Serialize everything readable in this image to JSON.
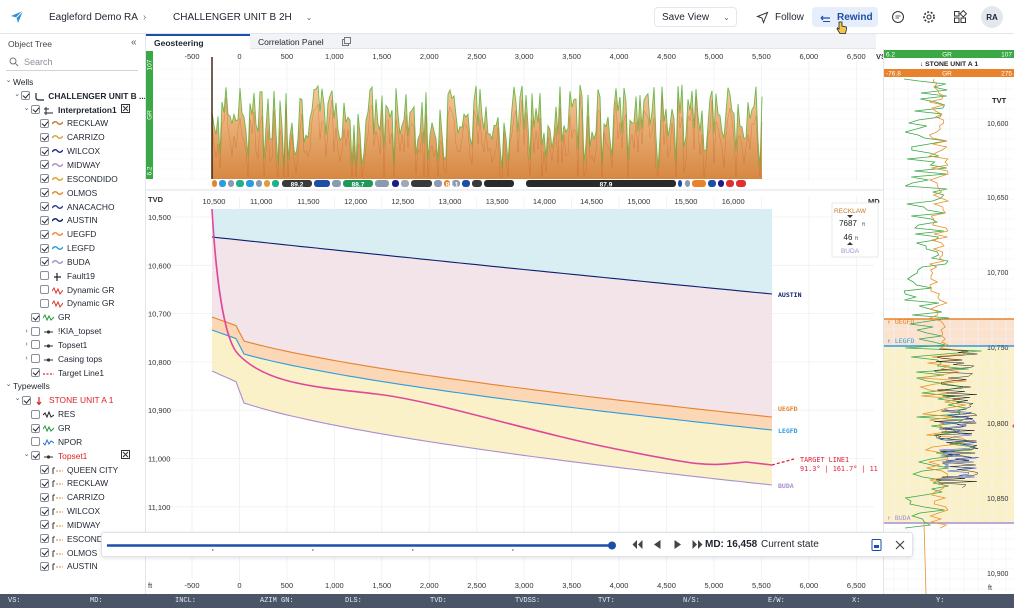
{
  "header": {
    "project": "Eagleford Demo RA",
    "well": "CHALLENGER UNIT B 2H",
    "save_view": "Save View",
    "follow": "Follow",
    "rewind": "Rewind",
    "avatar": "RA"
  },
  "sidebar": {
    "title": "Object Tree",
    "search_placeholder": "Search",
    "rows": [
      {
        "label": "Wells",
        "indent": 0,
        "chev": "v",
        "cb": "none"
      },
      {
        "label": "CHALLENGER UNIT B ...",
        "indent": 1,
        "chev": "v",
        "cb": "on",
        "bold": true,
        "icon": "well"
      },
      {
        "label": "Interpretation1",
        "indent": 2,
        "chev": "v",
        "cb": "on",
        "bold": true,
        "icon": "interp",
        "tool": true
      },
      {
        "label": "RECKLAW",
        "indent": 3,
        "cb": "on",
        "color": "#c77b2a"
      },
      {
        "label": "CARRIZO",
        "indent": 3,
        "cb": "on",
        "color": "#d8a43a"
      },
      {
        "label": "WILCOX",
        "indent": 3,
        "cb": "on",
        "color": "#1f2f88"
      },
      {
        "label": "MIDWAY",
        "indent": 3,
        "cb": "on",
        "color": "#b189c9"
      },
      {
        "label": "ESCONDIDO",
        "indent": 3,
        "cb": "on",
        "color": "#e0a020"
      },
      {
        "label": "OLMOS",
        "indent": 3,
        "cb": "on",
        "color": "#e08a2a"
      },
      {
        "label": "ANACACHO",
        "indent": 3,
        "cb": "on",
        "color": "#2c3e8f"
      },
      {
        "label": "AUSTIN",
        "indent": 3,
        "cb": "on",
        "color": "#0c1f6e"
      },
      {
        "label": "UEGFD",
        "indent": 3,
        "cb": "on",
        "color": "#f08a3c"
      },
      {
        "label": "LEGFD",
        "indent": 3,
        "cb": "on",
        "color": "#2a9de0"
      },
      {
        "label": "BUDA",
        "indent": 3,
        "cb": "on",
        "color": "#a88fcf"
      },
      {
        "label": "Fault19",
        "indent": 3,
        "cb": "off",
        "icon": "fault"
      },
      {
        "label": "Dynamic GR",
        "indent": 3,
        "cb": "off",
        "icon": "dyn"
      },
      {
        "label": "Dynamic GR",
        "indent": 3,
        "cb": "off",
        "icon": "dyn"
      },
      {
        "label": "GR",
        "indent": 2,
        "cb": "on",
        "icon": "gr"
      },
      {
        "label": "!KIA_topset",
        "indent": 2,
        "chev": ">",
        "cb": "off",
        "icon": "tops"
      },
      {
        "label": "Topset1",
        "indent": 2,
        "chev": ">",
        "cb": "off",
        "icon": "tops"
      },
      {
        "label": "Casing tops",
        "indent": 2,
        "chev": ">",
        "cb": "off",
        "icon": "tops"
      },
      {
        "label": "Target Line1",
        "indent": 2,
        "cb": "on",
        "icon": "target"
      },
      {
        "label": "Typewells",
        "indent": 0,
        "chev": "v",
        "cb": "none"
      },
      {
        "label": "STONE UNIT A 1",
        "indent": 1,
        "chev": "v",
        "cb": "on",
        "red": true,
        "icon": "redwell"
      },
      {
        "label": "RES",
        "indent": 2,
        "cb": "off",
        "icon": "res"
      },
      {
        "label": "GR",
        "indent": 2,
        "cb": "on",
        "icon": "gr"
      },
      {
        "label": "NPOR",
        "indent": 2,
        "cb": "off",
        "icon": "npor"
      },
      {
        "label": "Topset1",
        "indent": 2,
        "chev": "v",
        "cb": "on",
        "red": true,
        "icon": "tops",
        "tool": true
      },
      {
        "label": "QUEEN CITY",
        "indent": 3,
        "cb": "on",
        "icon": "top"
      },
      {
        "label": "RECKLAW",
        "indent": 3,
        "cb": "on",
        "icon": "top"
      },
      {
        "label": "CARRIZO",
        "indent": 3,
        "cb": "on",
        "icon": "top"
      },
      {
        "label": "WILCOX",
        "indent": 3,
        "cb": "on",
        "icon": "top"
      },
      {
        "label": "MIDWAY",
        "indent": 3,
        "cb": "on",
        "icon": "top"
      },
      {
        "label": "ESCONDIDO",
        "indent": 3,
        "cb": "on",
        "icon": "top"
      },
      {
        "label": "OLMOS",
        "indent": 3,
        "cb": "on",
        "icon": "top"
      },
      {
        "label": "AUSTIN",
        "indent": 3,
        "cb": "on",
        "icon": "top"
      }
    ]
  },
  "tabs": [
    "Geosteering",
    "Correlation Panel"
  ],
  "vs_axis": {
    "label": "VS:",
    "ticks": [
      "-500",
      "0",
      "500",
      "1,000",
      "1,500",
      "2,000",
      "2,500",
      "3,000",
      "3,500",
      "4,000",
      "4,500",
      "5,000",
      "5,500",
      "6,000",
      "6,500"
    ],
    "bottom_unit": "ft"
  },
  "gr_strip": {
    "top": "107",
    "bottom": "6.2",
    "name": "GR",
    "segments": [
      "89.2",
      "88.7",
      "88.1",
      "87.9"
    ]
  },
  "md_axis": {
    "label": "MD",
    "ticks": [
      "10,500",
      "11,000",
      "11,500",
      "12,000",
      "12,500",
      "13,000",
      "13,500",
      "14,000",
      "14,500",
      "15,000",
      "15,500",
      "16,000"
    ]
  },
  "tvd_axis": {
    "label": "TVD",
    "ticks": [
      "10,500",
      "10,600",
      "10,700",
      "10,800",
      "10,900",
      "11,000",
      "11,100"
    ]
  },
  "horizons": [
    {
      "name": "AUSTIN",
      "color": "#0c1f6e"
    },
    {
      "name": "UEGFD",
      "color": "#e8822c"
    },
    {
      "name": "LEGFD",
      "color": "#2a9de0"
    },
    {
      "name": "BUDA",
      "color": "#a88fcf"
    }
  ],
  "target": {
    "name": "TARGET LINE1",
    "values": "91.3° | 161.7° | 11"
  },
  "thickness": {
    "top": "RECKLAW",
    "value": "7687",
    "unit": "ft",
    "thick": "46",
    "thick_unit": "ft",
    "bottom": "BUDA"
  },
  "replay": {
    "md_label": "MD: 16,458",
    "state": "Current state"
  },
  "typewell": {
    "gr_min": "6.2",
    "gr_name": "GR",
    "gr_max": "107",
    "name": "STONE UNIT A 1",
    "log_min": "-76.8",
    "log_name": "GR",
    "log_max": "275",
    "tvt_label": "TVT",
    "ticks": [
      "10,600",
      "10,650",
      "10,700",
      "10,750",
      "10,800",
      "10,850",
      "10,900"
    ],
    "tops": [
      {
        "name": "UEGFD",
        "color": "#e8822c"
      },
      {
        "name": "LEGFD",
        "color": "#2a9de0"
      },
      {
        "name": "BUDA",
        "color": "#a88fcf"
      }
    ],
    "unit": "ft"
  },
  "status": [
    "VS:",
    "MD:",
    "INCL:",
    "AZIM GN:",
    "DLS:",
    "TVD:",
    "TVDSS:",
    "TVT:",
    "N/S:",
    "E/W:",
    "X:",
    "Y:"
  ]
}
